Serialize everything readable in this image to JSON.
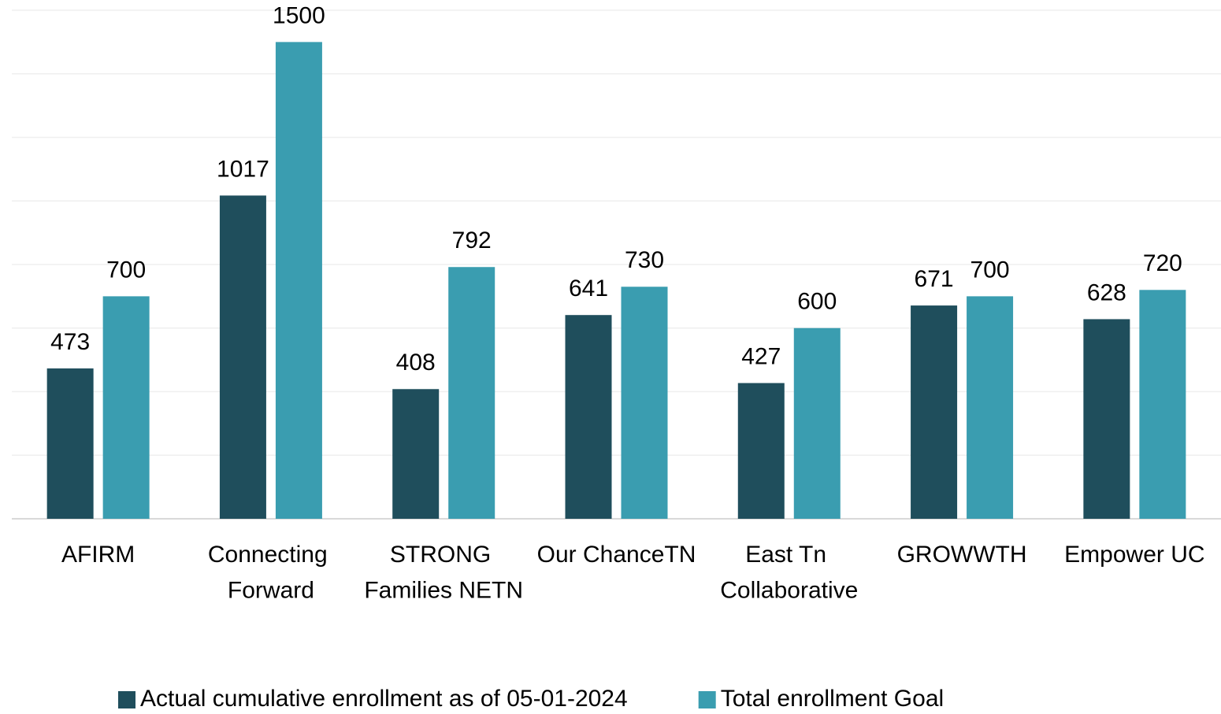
{
  "chart_data": {
    "type": "bar",
    "categories": [
      "AFIRM",
      "Connecting Forward",
      "STRONG Families NETN",
      "Our ChanceTN",
      "East Tn Collaborative",
      "GROWWTH",
      "Empower UC"
    ],
    "series": [
      {
        "name": "Actual cumulative enrollment as of 05-01-2024",
        "color": "#1f4e5c",
        "values": [
          473,
          1017,
          408,
          641,
          427,
          671,
          628
        ]
      },
      {
        "name": "Total enrollment Goal",
        "color": "#3a9db0",
        "values": [
          700,
          1500,
          792,
          730,
          600,
          700,
          720
        ]
      }
    ],
    "ylim": [
      0,
      1600
    ],
    "yticks": [
      0,
      200,
      400,
      600,
      800,
      1000,
      1200,
      1400,
      1600
    ],
    "grid": true
  }
}
